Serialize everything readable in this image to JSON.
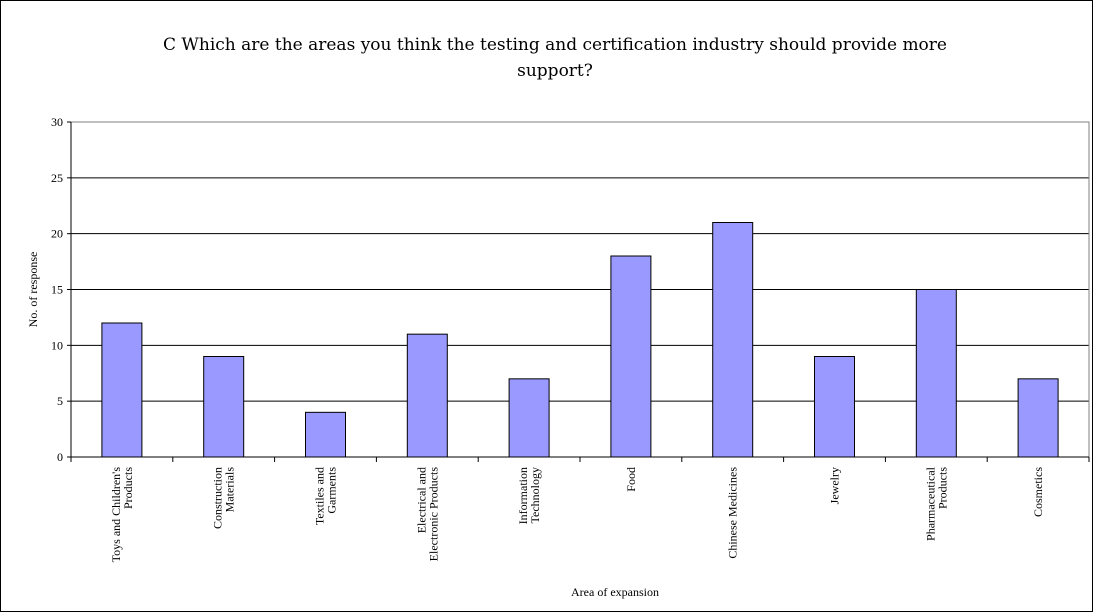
{
  "chart_data": {
    "type": "bar",
    "title": "C Which are the areas you think the testing and certification industry should provide more support?",
    "xlabel": "Area of expansion",
    "ylabel": "No. of response",
    "ylim": [
      0,
      30
    ],
    "yticks": [
      0,
      5,
      10,
      15,
      20,
      25,
      30
    ],
    "grid": true,
    "categories": [
      [
        "Toys and Children's",
        "Products"
      ],
      [
        "Construction",
        "Materials"
      ],
      [
        "Textiles and",
        "Garments"
      ],
      [
        "Electrical and",
        "Electronic Products"
      ],
      [
        "Information",
        "Technology"
      ],
      [
        "Food"
      ],
      [
        "Chinese Medicines"
      ],
      [
        "Jewelry"
      ],
      [
        "Pharmaceutical",
        "Products"
      ],
      [
        "Cosmetics"
      ]
    ],
    "values": [
      12,
      9,
      4,
      11,
      7,
      18,
      21,
      9,
      15,
      7
    ],
    "colors": {
      "bar": "#9999ff",
      "bar_stroke": "#000000",
      "grid": "#000000",
      "plot_border": "#808080"
    }
  }
}
